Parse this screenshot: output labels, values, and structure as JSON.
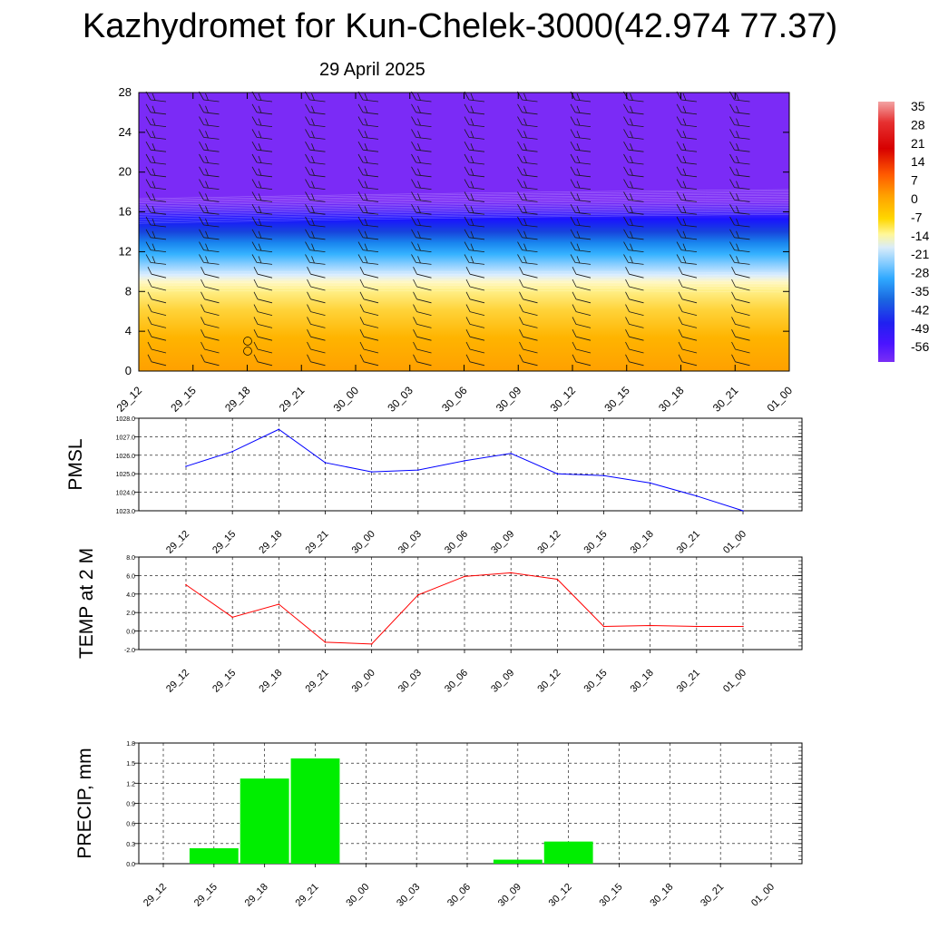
{
  "title": "Kazhydromet for Kun-Chelek-3000(42.974 77.37)",
  "subtitle": "29 April 2025",
  "time_labels": [
    "29_12",
    "29_15",
    "29_18",
    "29_21",
    "30_00",
    "30_03",
    "30_06",
    "30_09",
    "30_12",
    "30_15",
    "30_18",
    "30_21",
    "01_00"
  ],
  "colorbar": {
    "labels": [
      "35",
      "28",
      "21",
      "14",
      "7",
      "0",
      "-7",
      "-14",
      "-21",
      "-28",
      "-35",
      "-42",
      "-49",
      "-56"
    ]
  },
  "chart_data": [
    {
      "type": "heatmap",
      "description_axis": "height",
      "yticks": [
        "0",
        "4",
        "8",
        "12",
        "16",
        "20",
        "24",
        "28"
      ],
      "ylim": [
        0,
        28
      ],
      "x": [
        "29_12",
        "29_15",
        "29_18",
        "29_21",
        "30_00",
        "30_03",
        "30_06",
        "30_09",
        "30_12",
        "30_15",
        "30_18",
        "30_21",
        "01_00"
      ],
      "overlay": "wind barbs",
      "color_scale_min": -56,
      "color_scale_max": 35
    },
    {
      "type": "line",
      "ylabel": "PMSL",
      "ylim": [
        1023.0,
        1028.0
      ],
      "yticks": [
        "1023.0",
        "1024.0",
        "1025.0",
        "1026.0",
        "1027.0",
        "1028.0"
      ],
      "x": [
        "29_12",
        "29_15",
        "29_18",
        "29_21",
        "30_00",
        "30_03",
        "30_06",
        "30_09",
        "30_12",
        "30_15",
        "30_18",
        "30_21",
        "01_00"
      ],
      "values": [
        1025.4,
        1026.2,
        1027.4,
        1025.6,
        1025.1,
        1025.2,
        1025.7,
        1026.1,
        1025.0,
        1024.9,
        1024.5,
        1023.8,
        1023.0
      ],
      "color": "#0000ff",
      "grid": true
    },
    {
      "type": "line",
      "ylabel": "TEMP at 2 M",
      "ylim": [
        -2.0,
        8.0
      ],
      "yticks": [
        "-2.0",
        "0.0",
        "2.0",
        "4.0",
        "6.0",
        "8.0"
      ],
      "x": [
        "29_12",
        "29_15",
        "29_18",
        "29_21",
        "30_00",
        "30_03",
        "30_06",
        "30_09",
        "30_12",
        "30_15",
        "30_18",
        "30_21",
        "01_00"
      ],
      "values": [
        5.0,
        1.5,
        2.9,
        -1.2,
        -1.4,
        3.9,
        5.9,
        6.3,
        5.6,
        0.5,
        0.6,
        0.5,
        0.5
      ],
      "color": "#ff0000",
      "grid": true
    },
    {
      "type": "bar",
      "ylabel": "PRECIP, mm",
      "ylim": [
        0.0,
        1.8
      ],
      "yticks": [
        "0.0",
        "0.3",
        "0.6",
        "0.9",
        "1.2",
        "1.5",
        "1.8"
      ],
      "categories": [
        "29_12",
        "29_15",
        "29_18",
        "29_21",
        "30_00",
        "30_03",
        "30_06",
        "30_09",
        "30_12",
        "30_15",
        "30_18",
        "30_21",
        "01_00"
      ],
      "values": [
        0.0,
        0.23,
        1.27,
        1.57,
        0.0,
        0.0,
        0.0,
        0.06,
        0.33,
        0.0,
        0.0,
        0.0,
        0.0
      ],
      "color": "#00ee00",
      "grid": true
    }
  ]
}
